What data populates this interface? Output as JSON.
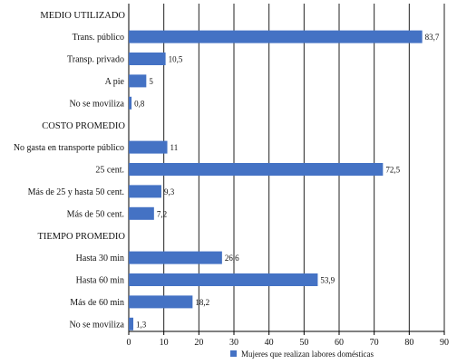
{
  "chart_data": {
    "type": "bar",
    "orientation": "horizontal",
    "title": "",
    "xlabel": "",
    "ylabel": "",
    "xlim": [
      0,
      90
    ],
    "xticks": [
      0,
      10,
      20,
      30,
      40,
      50,
      60,
      70,
      80,
      90
    ],
    "grid": "vertical",
    "legend_position": "bottom-right",
    "bar_color": "#4472C4",
    "series": [
      {
        "name": "Mujeres que realizan labores domésticas"
      }
    ],
    "groups": [
      {
        "label": "MEDIO UTILIZADO",
        "categories": [
          "Trans. público",
          "Transp. privado",
          "A pie",
          "No se moviliza"
        ],
        "values": [
          83.7,
          10.5,
          5,
          0.8
        ],
        "value_labels": [
          "83,7",
          "10,5",
          "5",
          "0,8"
        ]
      },
      {
        "label": "COSTO PROMEDIO",
        "categories": [
          "No gasta en transporte público",
          "25 cent.",
          "Más de 25 y hasta 50 cent.",
          "Más de 50 cent."
        ],
        "values": [
          11,
          72.5,
          9.3,
          7.2
        ],
        "value_labels": [
          "11",
          "72,5",
          "9,3",
          "7,2"
        ]
      },
      {
        "label": "TIEMPO PROMEDIO",
        "categories": [
          "Hasta 30 min",
          "Hasta 60 min",
          "Más de 60 min",
          "No se moviliza"
        ],
        "values": [
          26.6,
          53.9,
          18.2,
          1.3
        ],
        "value_labels": [
          "26,6",
          "53,9",
          "18,2",
          "1,3"
        ]
      }
    ]
  }
}
